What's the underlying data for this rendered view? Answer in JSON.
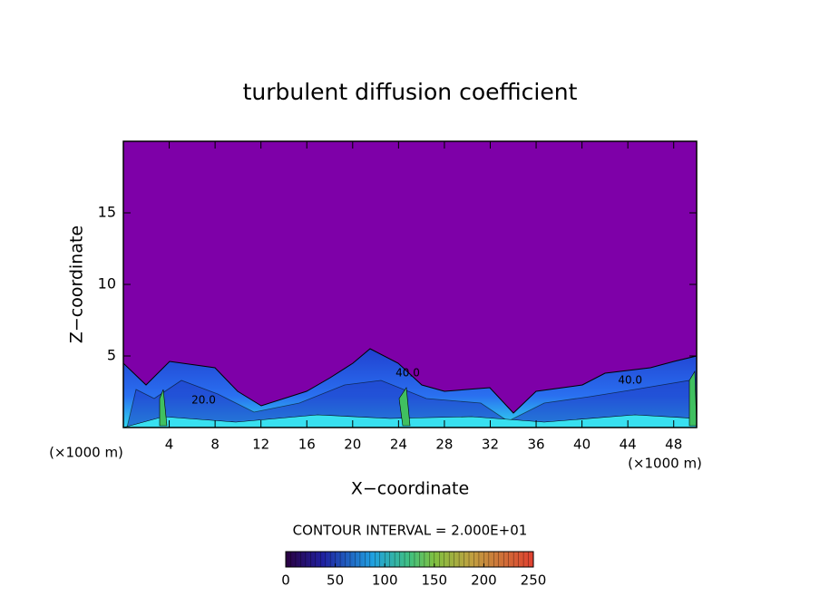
{
  "chart_data": {
    "type": "contour",
    "title": "turbulent diffusion coefficient",
    "x_label": "X−coordinate",
    "y_label": "Z−coordinate",
    "x_unit": "(×1000 m)",
    "y_unit": "(×1000 m)",
    "xlim": [
      0,
      50
    ],
    "xticks": [
      4,
      8,
      12,
      16,
      20,
      24,
      28,
      32,
      36,
      40,
      44,
      48
    ],
    "ylim": [
      0,
      20
    ],
    "yticks": [
      5,
      10,
      15
    ],
    "background_color": "#7e00a8",
    "contour_labels": [
      {
        "x": 24.8,
        "y": 3.8,
        "label": "40.0"
      },
      {
        "x": 44.2,
        "y": 3.3,
        "label": "40.0"
      },
      {
        "x": 7.0,
        "y": 1.9,
        "label": "20.0"
      }
    ],
    "contour_interval_label": "CONTOUR INTERVAL = 2.000E+01",
    "colorbar": {
      "lim": [
        0,
        250
      ],
      "ticks": [
        0,
        50,
        100,
        150,
        200,
        250
      ]
    }
  }
}
